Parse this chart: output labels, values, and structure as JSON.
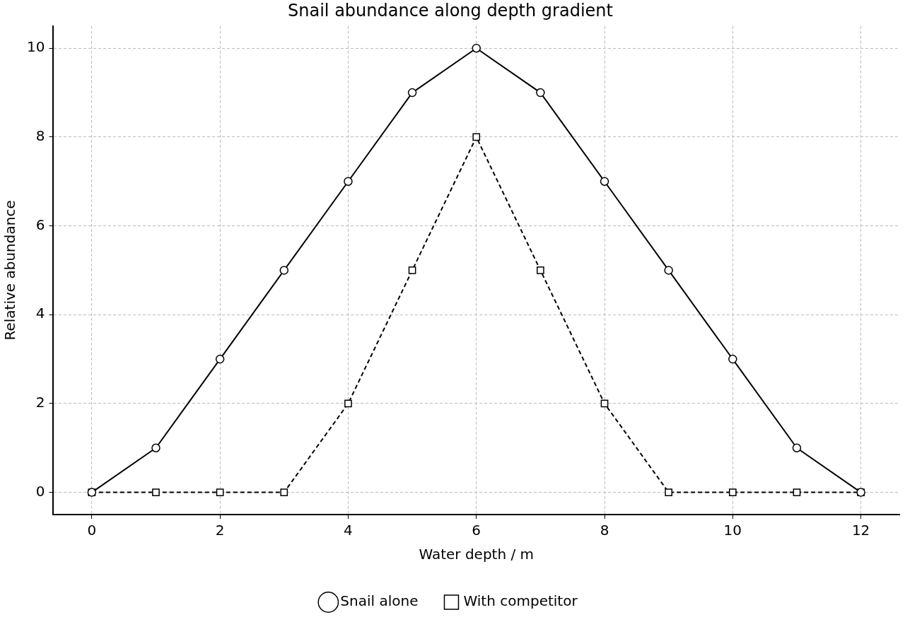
{
  "chart_data": {
    "type": "line",
    "title": "Snail abundance along depth gradient",
    "xlabel": "Water depth / m",
    "ylabel": "Relative abundance",
    "x": [
      0,
      1,
      2,
      3,
      4,
      5,
      6,
      7,
      8,
      9,
      10,
      11,
      12
    ],
    "series": [
      {
        "name": "Snail alone",
        "color": "#000000",
        "marker": "circle",
        "line_style": "solid",
        "values": [
          0,
          1,
          3,
          5,
          7,
          9,
          10,
          9,
          7,
          5,
          3,
          1,
          0
        ]
      },
      {
        "name": "With competitor",
        "color": "#000000",
        "marker": "square",
        "line_style": "dashed",
        "values": [
          0,
          0,
          0,
          0,
          2,
          5,
          8,
          5,
          2,
          0,
          0,
          0,
          0
        ]
      }
    ],
    "xlim": [
      -0.6,
      12.6
    ],
    "xticks": [
      0,
      2,
      4,
      6,
      8,
      10,
      12
    ],
    "ylim": [
      -0.5,
      10.5
    ],
    "yticks": [
      0,
      2,
      4,
      6,
      8,
      10
    ],
    "grid": true,
    "legend": "bottom"
  }
}
